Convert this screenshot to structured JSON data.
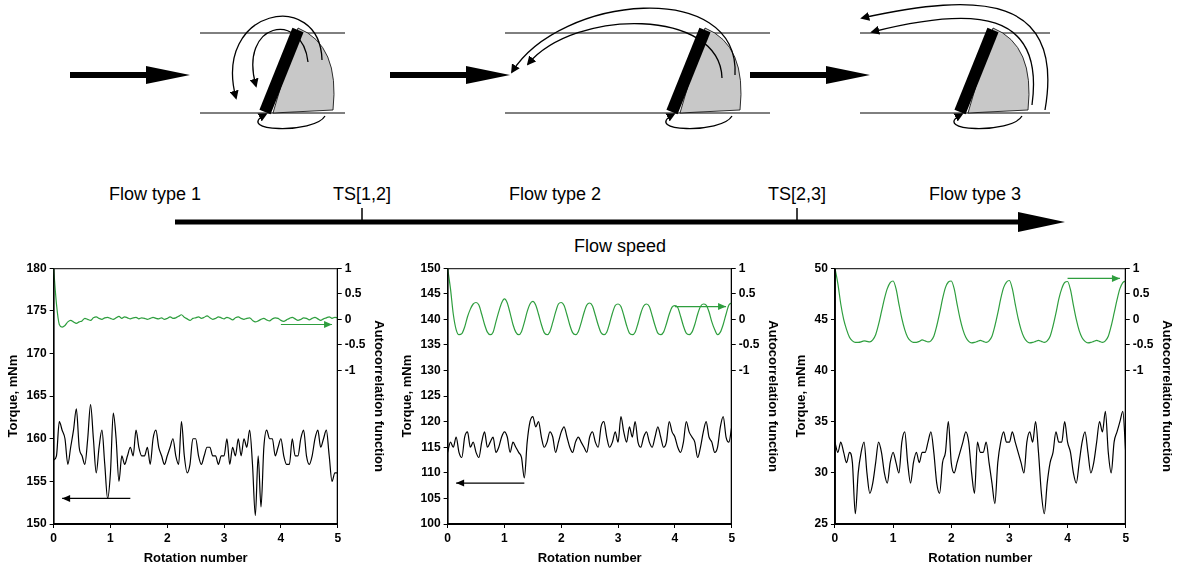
{
  "diagram": {
    "flow_types": [
      "Flow type 1",
      "Flow type 2",
      "Flow type 3"
    ],
    "transitions": [
      "TS[1,2]",
      "TS[2,3]"
    ],
    "axis_label": "Flow speed"
  },
  "chart_data": [
    {
      "type": "line",
      "x_label": "Rotation number",
      "y_label": "Torque, mNm",
      "y2_label": "Autocorrelation function",
      "grid": false,
      "x": [
        0,
        0.05,
        0.1,
        0.15,
        0.2,
        0.25,
        0.3,
        0.35,
        0.4,
        0.45,
        0.5,
        0.55,
        0.6,
        0.65,
        0.7,
        0.75,
        0.8,
        0.85,
        0.9,
        0.95,
        1,
        1.05,
        1.1,
        1.15,
        1.2,
        1.25,
        1.3,
        1.35,
        1.4,
        1.45,
        1.5,
        1.55,
        1.6,
        1.65,
        1.7,
        1.75,
        1.8,
        1.85,
        1.9,
        1.95,
        2,
        2.05,
        2.1,
        2.15,
        2.2,
        2.25,
        2.3,
        2.35,
        2.4,
        2.45,
        2.5,
        2.55,
        2.6,
        2.65,
        2.7,
        2.75,
        2.8,
        2.85,
        2.9,
        2.95,
        3,
        3.05,
        3.1,
        3.15,
        3.2,
        3.25,
        3.3,
        3.35,
        3.4,
        3.45,
        3.5,
        3.55,
        3.6,
        3.65,
        3.7,
        3.75,
        3.8,
        3.85,
        3.9,
        3.95,
        4,
        4.05,
        4.1,
        4.15,
        4.2,
        4.25,
        4.3,
        4.35,
        4.4,
        4.45,
        4.5,
        4.55,
        4.6,
        4.65,
        4.7,
        4.75,
        4.8,
        4.85,
        4.9,
        4.95,
        5
      ],
      "xlim": [
        0,
        5
      ],
      "xticks": [
        0,
        1,
        2,
        3,
        4,
        5
      ],
      "ylim": [
        150,
        180
      ],
      "yticks": [
        150,
        155,
        160,
        165,
        170,
        175,
        180
      ],
      "y2lim": [
        -4,
        1
      ],
      "y2ticks": [
        -1,
        -0.5,
        0,
        0.5,
        1
      ],
      "series": [
        {
          "color": "#000000",
          "values": [
            157.5,
            158,
            162,
            161,
            160,
            157,
            159,
            161,
            163.5,
            159,
            158,
            157,
            160,
            164,
            160,
            156,
            159,
            161,
            157,
            153,
            156,
            163,
            160,
            155,
            158,
            157,
            158,
            159,
            158,
            161,
            159,
            158,
            158,
            159,
            157,
            160,
            161,
            159,
            158,
            157,
            158,
            159,
            160,
            158,
            157,
            162,
            158,
            156,
            157,
            160,
            160,
            158,
            157,
            158,
            159,
            159,
            158,
            158,
            157,
            158,
            158,
            160,
            157,
            159,
            158,
            160,
            158,
            160,
            159,
            161,
            157,
            151,
            158,
            152,
            159,
            161,
            160,
            160,
            158,
            159,
            160,
            158,
            157,
            157,
            160,
            158,
            158,
            160,
            161,
            158,
            157,
            158,
            160,
            161,
            159,
            160,
            161,
            158,
            155,
            156,
            156
          ]
        },
        {
          "color": "#2e9e3e",
          "axis": "y2",
          "values": [
            1,
            0.3,
            -0.1,
            -0.15,
            -0.12,
            -0.05,
            -0.02,
            -0.05,
            -0.08,
            -0.05,
            -0.03,
            0.02,
            0,
            -0.02,
            0.03,
            0.05,
            0.02,
            0,
            0.03,
            0.04,
            0.02,
            0,
            0.03,
            0.06,
            0.02,
            0.05,
            0.03,
            0.01,
            0.03,
            0.04,
            0.01,
            0.03,
            0.02,
            0,
            0.02,
            0.04,
            0.02,
            0.01,
            0.03,
            0,
            0.02,
            0.05,
            0.02,
            0.03,
            0.06,
            0.09,
            0.04,
            0.01,
            -0.02,
            0.02,
            0.03,
            0.05,
            0.02,
            0.04,
            0.07,
            0.03,
            0,
            0.02,
            0.05,
            0.03,
            0.01,
            0.04,
            0.02,
            -0.01,
            0.03,
            0.05,
            0.02,
            0,
            0.02,
            0.03,
            -0.02,
            -0.05,
            -0.03,
            0,
            0.02,
            -0.01,
            -0.03,
            0.01,
            0.03,
            0.02,
            -0.02,
            -0.04,
            -0.01,
            0.02,
            0.04,
            0.01,
            -0.02,
            0,
            0.03,
            0.02,
            -0.01,
            0.02,
            0.04,
            0.01,
            -0.02,
            0.01,
            0.03,
            0.05,
            0.02,
            0.04,
            0.03
          ]
        }
      ]
    },
    {
      "type": "line",
      "x_label": "Rotation number",
      "y_label": "Torque, mNm",
      "y2_label": "Autocorrelation function",
      "grid": false,
      "x": [
        0,
        0.05,
        0.1,
        0.15,
        0.2,
        0.25,
        0.3,
        0.35,
        0.4,
        0.45,
        0.5,
        0.55,
        0.6,
        0.65,
        0.7,
        0.75,
        0.8,
        0.85,
        0.9,
        0.95,
        1,
        1.05,
        1.1,
        1.15,
        1.2,
        1.25,
        1.3,
        1.35,
        1.4,
        1.45,
        1.5,
        1.55,
        1.6,
        1.65,
        1.7,
        1.75,
        1.8,
        1.85,
        1.9,
        1.95,
        2,
        2.05,
        2.1,
        2.15,
        2.2,
        2.25,
        2.3,
        2.35,
        2.4,
        2.45,
        2.5,
        2.55,
        2.6,
        2.65,
        2.7,
        2.75,
        2.8,
        2.85,
        2.9,
        2.95,
        3,
        3.05,
        3.1,
        3.15,
        3.2,
        3.25,
        3.3,
        3.35,
        3.4,
        3.45,
        3.5,
        3.55,
        3.6,
        3.65,
        3.7,
        3.75,
        3.8,
        3.85,
        3.9,
        3.95,
        4,
        4.05,
        4.1,
        4.15,
        4.2,
        4.25,
        4.3,
        4.35,
        4.4,
        4.45,
        4.5,
        4.55,
        4.6,
        4.65,
        4.7,
        4.75,
        4.8,
        4.85,
        4.9,
        4.95,
        5
      ],
      "xlim": [
        0,
        5
      ],
      "xticks": [
        0,
        1,
        2,
        3,
        4,
        5
      ],
      "ylim": [
        100,
        150
      ],
      "yticks": [
        100,
        105,
        110,
        115,
        120,
        125,
        130,
        135,
        140,
        145,
        150
      ],
      "y2lim": [
        -4,
        1
      ],
      "y2ticks": [
        -1,
        -0.5,
        0,
        0.5,
        1
      ],
      "series": [
        {
          "color": "#000000",
          "values": [
            114,
            116,
            115,
            117,
            114,
            113,
            117,
            118,
            115,
            116,
            114,
            113,
            116,
            118,
            115,
            116,
            117,
            114,
            115,
            117,
            118,
            117,
            114,
            116,
            115,
            114,
            113,
            109,
            116,
            120,
            121,
            119,
            120,
            117,
            115,
            116,
            118,
            117,
            114,
            116,
            118,
            119,
            117,
            115,
            114,
            116,
            117,
            116,
            115,
            114,
            117,
            118,
            116,
            115,
            119,
            120,
            117,
            115,
            116,
            118,
            116,
            121,
            118,
            116,
            119,
            117,
            120,
            116,
            115,
            117,
            118,
            116,
            115,
            117,
            119,
            117,
            115,
            116,
            120,
            118,
            117,
            115,
            114,
            116,
            120,
            118,
            117,
            116,
            113,
            115,
            118,
            120,
            117,
            116,
            114,
            115,
            119,
            121,
            117,
            116,
            119
          ]
        },
        {
          "color": "#2e9e3e",
          "axis": "y2",
          "values": [
            1,
            0.6,
            0.1,
            -0.2,
            -0.3,
            -0.28,
            -0.15,
            0.05,
            0.2,
            0.3,
            0.33,
            0.28,
            0.1,
            -0.1,
            -0.25,
            -0.3,
            -0.25,
            -0.05,
            0.15,
            0.32,
            0.4,
            0.32,
            0.12,
            -0.1,
            -0.25,
            -0.3,
            -0.24,
            -0.06,
            0.15,
            0.3,
            0.35,
            0.28,
            0.1,
            -0.1,
            -0.26,
            -0.3,
            -0.24,
            -0.06,
            0.14,
            0.3,
            0.33,
            0.27,
            0.09,
            -0.11,
            -0.26,
            -0.3,
            -0.24,
            -0.07,
            0.13,
            0.28,
            0.32,
            0.26,
            0.08,
            -0.11,
            -0.26,
            -0.3,
            -0.25,
            -0.08,
            0.12,
            0.27,
            0.3,
            0.25,
            0.08,
            -0.12,
            -0.27,
            -0.3,
            -0.25,
            -0.08,
            0.12,
            0.26,
            0.3,
            0.25,
            0.07,
            -0.12,
            -0.27,
            -0.3,
            -0.25,
            -0.09,
            0.1,
            0.24,
            0.27,
            0.23,
            0.06,
            -0.13,
            -0.27,
            -0.3,
            -0.25,
            -0.1,
            0.1,
            0.25,
            0.3,
            0.28,
            0.15,
            -0.05,
            -0.2,
            -0.3,
            -0.25,
            -0.1,
            0.1,
            0.28,
            0.32
          ]
        }
      ]
    },
    {
      "type": "line",
      "x_label": "Rotation number",
      "y_label": "Torque, mNm",
      "y2_label": "Autocorrelation function",
      "grid": false,
      "x": [
        0,
        0.05,
        0.1,
        0.15,
        0.2,
        0.25,
        0.3,
        0.35,
        0.4,
        0.45,
        0.5,
        0.55,
        0.6,
        0.65,
        0.7,
        0.75,
        0.8,
        0.85,
        0.9,
        0.95,
        1,
        1.05,
        1.1,
        1.15,
        1.2,
        1.25,
        1.3,
        1.35,
        1.4,
        1.45,
        1.5,
        1.55,
        1.6,
        1.65,
        1.7,
        1.75,
        1.8,
        1.85,
        1.9,
        1.95,
        2,
        2.05,
        2.1,
        2.15,
        2.2,
        2.25,
        2.3,
        2.35,
        2.4,
        2.45,
        2.5,
        2.55,
        2.6,
        2.65,
        2.7,
        2.75,
        2.8,
        2.85,
        2.9,
        2.95,
        3,
        3.05,
        3.1,
        3.15,
        3.2,
        3.25,
        3.3,
        3.35,
        3.4,
        3.45,
        3.5,
        3.55,
        3.6,
        3.65,
        3.7,
        3.75,
        3.8,
        3.85,
        3.9,
        3.95,
        4,
        4.05,
        4.1,
        4.15,
        4.2,
        4.25,
        4.3,
        4.35,
        4.4,
        4.45,
        4.5,
        4.55,
        4.6,
        4.65,
        4.7,
        4.75,
        4.8,
        4.85,
        4.9,
        4.95,
        5
      ],
      "xlim": [
        0,
        5
      ],
      "xticks": [
        0,
        1,
        2,
        3,
        4,
        5
      ],
      "ylim": [
        25,
        50
      ],
      "yticks": [
        25,
        30,
        35,
        40,
        45,
        50
      ],
      "y2lim": [
        -4,
        1
      ],
      "y2ticks": [
        -1,
        -0.5,
        0,
        0.5,
        1
      ],
      "series": [
        {
          "color": "#000000",
          "values": [
            33,
            32,
            33,
            32,
            31,
            32,
            31,
            26,
            30,
            32,
            33,
            30,
            28,
            29,
            31,
            33,
            32,
            30,
            29,
            31,
            32,
            31,
            30,
            33,
            34,
            31,
            29,
            31,
            32,
            31,
            32,
            32,
            33,
            34,
            32,
            29,
            28,
            31,
            32,
            35,
            31,
            30,
            31,
            32,
            33,
            34,
            33,
            30,
            28,
            33,
            32,
            32,
            33,
            31,
            29,
            27,
            31,
            33,
            34,
            33,
            33,
            34,
            33,
            32,
            31,
            30,
            33,
            34,
            33,
            35,
            32,
            28,
            26,
            29,
            31,
            32,
            34,
            33,
            33,
            35,
            33,
            32,
            30,
            29,
            31,
            33,
            34,
            32,
            30,
            31,
            33,
            35,
            34,
            36,
            32,
            30,
            33,
            34,
            35,
            36,
            32
          ]
        },
        {
          "color": "#2e9e3e",
          "axis": "y2",
          "values": [
            1,
            0.7,
            0.3,
            0,
            -0.2,
            -0.35,
            -0.42,
            -0.45,
            -0.45,
            -0.44,
            -0.42,
            -0.43,
            -0.44,
            -0.4,
            -0.3,
            -0.1,
            0.15,
            0.4,
            0.6,
            0.72,
            0.75,
            0.6,
            0.3,
            0.02,
            -0.2,
            -0.35,
            -0.42,
            -0.45,
            -0.45,
            -0.43,
            -0.4,
            -0.42,
            -0.44,
            -0.42,
            -0.33,
            -0.13,
            0.12,
            0.4,
            0.62,
            0.73,
            0.75,
            0.6,
            0.3,
            0.02,
            -0.2,
            -0.35,
            -0.43,
            -0.46,
            -0.45,
            -0.43,
            -0.41,
            -0.43,
            -0.45,
            -0.42,
            -0.33,
            -0.13,
            0.12,
            0.4,
            0.62,
            0.73,
            0.76,
            0.6,
            0.3,
            0.02,
            -0.2,
            -0.35,
            -0.43,
            -0.46,
            -0.45,
            -0.43,
            -0.41,
            -0.43,
            -0.45,
            -0.42,
            -0.33,
            -0.13,
            0.12,
            0.4,
            0.6,
            0.72,
            0.74,
            0.58,
            0.28,
            0,
            -0.22,
            -0.36,
            -0.43,
            -0.46,
            -0.45,
            -0.43,
            -0.41,
            -0.43,
            -0.45,
            -0.42,
            -0.33,
            -0.13,
            0.12,
            0.38,
            0.6,
            0.72,
            0.75
          ]
        }
      ]
    }
  ]
}
